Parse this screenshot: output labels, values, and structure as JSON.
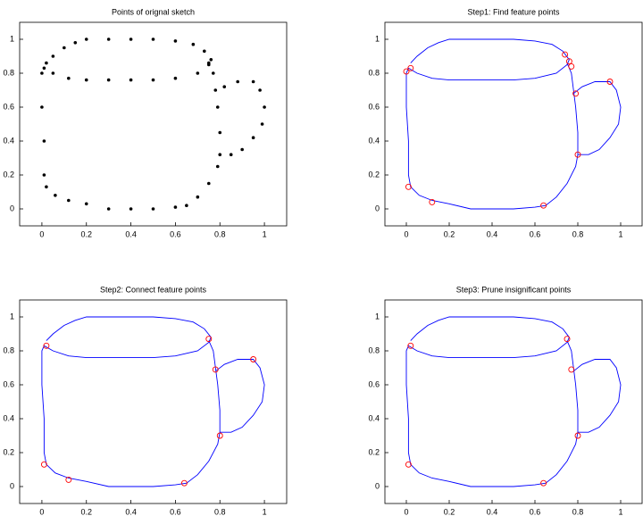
{
  "chart_data": [
    {
      "type": "scatter",
      "title": "Points of orignal sketch",
      "color": "#000000",
      "x": [
        0.02,
        0.05,
        0.1,
        0.15,
        0.2,
        0.3,
        0.4,
        0.5,
        0.6,
        0.68,
        0.73,
        0.76,
        0.75,
        0.7,
        0.6,
        0.5,
        0.4,
        0.3,
        0.2,
        0.12,
        0.05,
        0.01,
        0.0,
        0.0,
        0.01,
        0.01,
        0.02,
        0.06,
        0.12,
        0.2,
        0.3,
        0.4,
        0.5,
        0.6,
        0.65,
        0.7,
        0.75,
        0.79,
        0.8,
        0.8,
        0.79,
        0.78,
        0.77,
        0.75,
        0.82,
        0.88,
        0.95,
        0.98,
        1.0,
        0.99,
        0.95,
        0.9,
        0.85
      ],
      "y": [
        0.86,
        0.9,
        0.95,
        0.98,
        1.0,
        1.0,
        1.0,
        1.0,
        0.99,
        0.97,
        0.93,
        0.88,
        0.85,
        0.8,
        0.77,
        0.76,
        0.76,
        0.76,
        0.76,
        0.77,
        0.8,
        0.83,
        0.8,
        0.6,
        0.4,
        0.2,
        0.13,
        0.08,
        0.05,
        0.03,
        0.0,
        0.0,
        0.0,
        0.01,
        0.02,
        0.07,
        0.15,
        0.25,
        0.32,
        0.45,
        0.6,
        0.7,
        0.8,
        0.86,
        0.72,
        0.75,
        0.75,
        0.7,
        0.6,
        0.5,
        0.42,
        0.35,
        0.32
      ],
      "xlim": [
        -0.1,
        1.1
      ],
      "ylim": [
        -0.1,
        1.1
      ],
      "xticks": [
        0,
        0.2,
        0.4,
        0.6,
        0.8,
        1
      ],
      "yticks": [
        0,
        0.2,
        0.4,
        0.6,
        0.8,
        1
      ]
    },
    {
      "type": "line",
      "title": "Step1: Find feature points",
      "color": "#0000ff",
      "x": [
        0.02,
        0.05,
        0.1,
        0.15,
        0.2,
        0.3,
        0.4,
        0.5,
        0.6,
        0.68,
        0.73,
        0.76,
        0.75,
        0.7,
        0.6,
        0.5,
        0.4,
        0.3,
        0.2,
        0.12,
        0.05,
        0.01,
        0.0,
        0.0,
        0.01,
        0.01,
        0.02,
        0.06,
        0.12,
        0.2,
        0.3,
        0.4,
        0.5,
        0.6,
        0.65,
        0.7,
        0.75,
        0.79,
        0.8,
        0.8,
        0.79,
        0.78,
        0.77,
        0.75,
        null,
        0.78,
        0.82,
        0.88,
        0.95,
        0.98,
        1.0,
        0.99,
        0.95,
        0.9,
        0.85,
        0.8
      ],
      "y": [
        0.86,
        0.9,
        0.95,
        0.98,
        1.0,
        1.0,
        1.0,
        1.0,
        0.99,
        0.97,
        0.93,
        0.88,
        0.85,
        0.8,
        0.77,
        0.76,
        0.76,
        0.76,
        0.76,
        0.77,
        0.8,
        0.83,
        0.8,
        0.6,
        0.4,
        0.2,
        0.13,
        0.08,
        0.05,
        0.03,
        0.0,
        0.0,
        0.0,
        0.01,
        0.02,
        0.07,
        0.15,
        0.25,
        0.32,
        0.45,
        0.6,
        0.7,
        0.8,
        0.86,
        null,
        0.68,
        0.72,
        0.75,
        0.75,
        0.7,
        0.6,
        0.5,
        0.42,
        0.35,
        0.32,
        0.32
      ],
      "feature_points": {
        "color": "#ff0000",
        "x": [
          0.0,
          0.02,
          0.12,
          0.01,
          0.64,
          0.74,
          0.76,
          0.77,
          0.79,
          0.8,
          0.95
        ],
        "y": [
          0.81,
          0.83,
          0.04,
          0.13,
          0.02,
          0.91,
          0.87,
          0.84,
          0.68,
          0.32,
          0.75
        ]
      },
      "xlim": [
        -0.1,
        1.1
      ],
      "ylim": [
        -0.1,
        1.1
      ],
      "xticks": [
        0,
        0.2,
        0.4,
        0.6,
        0.8,
        1
      ],
      "yticks": [
        0,
        0.2,
        0.4,
        0.6,
        0.8,
        1
      ]
    },
    {
      "type": "line",
      "title": "Step2: Connect feature points",
      "color": "#0000ff",
      "x": [
        0.02,
        0.05,
        0.1,
        0.15,
        0.2,
        0.3,
        0.4,
        0.5,
        0.6,
        0.68,
        0.73,
        0.76,
        0.75,
        0.7,
        0.6,
        0.5,
        0.4,
        0.3,
        0.2,
        0.12,
        0.05,
        0.01,
        0.0,
        0.0,
        0.01,
        0.01,
        0.02,
        0.06,
        0.12,
        0.2,
        0.3,
        0.4,
        0.5,
        0.6,
        0.65,
        0.7,
        0.75,
        0.79,
        0.8,
        0.8,
        0.79,
        0.78,
        0.77,
        0.75,
        null,
        0.78,
        0.82,
        0.88,
        0.95,
        0.98,
        1.0,
        0.99,
        0.95,
        0.9,
        0.85,
        0.8
      ],
      "y": [
        0.86,
        0.9,
        0.95,
        0.98,
        1.0,
        1.0,
        1.0,
        1.0,
        0.99,
        0.97,
        0.93,
        0.88,
        0.85,
        0.8,
        0.77,
        0.76,
        0.76,
        0.76,
        0.76,
        0.77,
        0.8,
        0.83,
        0.8,
        0.6,
        0.4,
        0.2,
        0.13,
        0.08,
        0.05,
        0.03,
        0.0,
        0.0,
        0.0,
        0.01,
        0.02,
        0.07,
        0.15,
        0.25,
        0.32,
        0.45,
        0.6,
        0.7,
        0.8,
        0.86,
        null,
        0.68,
        0.72,
        0.75,
        0.75,
        0.7,
        0.6,
        0.5,
        0.42,
        0.35,
        0.32,
        0.32
      ],
      "feature_points": {
        "color": "#ff0000",
        "x": [
          0.02,
          0.01,
          0.12,
          0.64,
          0.75,
          0.78,
          0.8,
          0.95
        ],
        "y": [
          0.83,
          0.13,
          0.04,
          0.02,
          0.87,
          0.69,
          0.3,
          0.75
        ]
      },
      "xlim": [
        -0.1,
        1.1
      ],
      "ylim": [
        -0.1,
        1.1
      ],
      "xticks": [
        0,
        0.2,
        0.4,
        0.6,
        0.8,
        1
      ],
      "yticks": [
        0,
        0.2,
        0.4,
        0.6,
        0.8,
        1
      ]
    },
    {
      "type": "line",
      "title": "Step3: Prune insignificant points",
      "color": "#0000ff",
      "x": [
        0.02,
        0.05,
        0.1,
        0.15,
        0.2,
        0.3,
        0.4,
        0.5,
        0.6,
        0.68,
        0.73,
        0.76,
        0.75,
        0.7,
        0.6,
        0.5,
        0.4,
        0.3,
        0.2,
        0.12,
        0.05,
        0.01,
        0.0,
        0.0,
        0.01,
        0.01,
        0.02,
        0.06,
        0.12,
        0.2,
        0.3,
        0.4,
        0.5,
        0.6,
        0.65,
        0.7,
        0.75,
        0.79,
        0.8,
        0.8,
        0.79,
        0.78,
        0.77,
        0.75,
        null,
        0.78,
        0.82,
        0.88,
        0.95,
        0.98,
        1.0,
        0.99,
        0.95,
        0.9,
        0.85,
        0.8
      ],
      "y": [
        0.86,
        0.9,
        0.95,
        0.98,
        1.0,
        1.0,
        1.0,
        1.0,
        0.99,
        0.97,
        0.93,
        0.88,
        0.85,
        0.8,
        0.77,
        0.76,
        0.76,
        0.76,
        0.76,
        0.77,
        0.8,
        0.83,
        0.8,
        0.6,
        0.4,
        0.2,
        0.13,
        0.08,
        0.05,
        0.03,
        0.0,
        0.0,
        0.0,
        0.01,
        0.02,
        0.07,
        0.15,
        0.25,
        0.32,
        0.45,
        0.6,
        0.7,
        0.8,
        0.86,
        null,
        0.68,
        0.72,
        0.75,
        0.75,
        0.7,
        0.6,
        0.5,
        0.42,
        0.35,
        0.32,
        0.32
      ],
      "feature_points": {
        "color": "#ff0000",
        "x": [
          0.02,
          0.01,
          0.64,
          0.75,
          0.77,
          0.8
        ],
        "y": [
          0.83,
          0.13,
          0.02,
          0.87,
          0.69,
          0.3
        ]
      },
      "xlim": [
        -0.1,
        1.1
      ],
      "ylim": [
        -0.1,
        1.1
      ],
      "xticks": [
        0,
        0.2,
        0.4,
        0.6,
        0.8,
        1
      ],
      "yticks": [
        0,
        0.2,
        0.4,
        0.6,
        0.8,
        1
      ]
    }
  ]
}
